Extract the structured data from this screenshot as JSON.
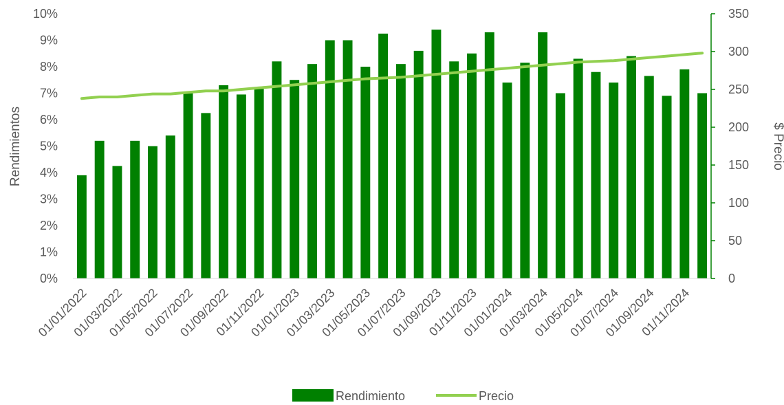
{
  "chart_data": {
    "type": "bar",
    "x": [
      "01/01/2022",
      "01/02/2022",
      "01/03/2022",
      "01/04/2022",
      "01/05/2022",
      "01/06/2022",
      "01/07/2022",
      "01/08/2022",
      "01/09/2022",
      "01/10/2022",
      "01/11/2022",
      "01/12/2022",
      "01/01/2023",
      "01/02/2023",
      "01/03/2023",
      "01/04/2023",
      "01/05/2023",
      "01/06/2023",
      "01/07/2023",
      "01/08/2023",
      "01/09/2023",
      "01/10/2023",
      "01/11/2023",
      "01/12/2023",
      "01/01/2024",
      "01/02/2024",
      "01/03/2024",
      "01/04/2024",
      "01/05/2024",
      "01/06/2024",
      "01/07/2024",
      "01/08/2024",
      "01/09/2024",
      "01/10/2024",
      "01/11/2024",
      "01/12/2024"
    ],
    "x_tick_labels": [
      "01/01/2022",
      "01/03/2022",
      "01/05/2022",
      "01/07/2022",
      "01/09/2022",
      "01/11/2022",
      "01/01/2023",
      "01/03/2023",
      "01/05/2023",
      "01/07/2023",
      "01/09/2023",
      "01/11/2023",
      "01/01/2024",
      "01/03/2024",
      "01/05/2024",
      "01/07/2024",
      "01/09/2024",
      "01/11/2024"
    ],
    "series": [
      {
        "name": "Rendimiento",
        "type": "bar",
        "axis": "left",
        "color": "#008000",
        "values": [
          0.039,
          0.052,
          0.0425,
          0.052,
          0.05,
          0.054,
          0.07,
          0.0625,
          0.073,
          0.0695,
          0.072,
          0.082,
          0.075,
          0.081,
          0.09,
          0.09,
          0.08,
          0.0925,
          0.081,
          0.086,
          0.094,
          0.082,
          0.085,
          0.093,
          0.074,
          0.0815,
          0.093,
          0.07,
          0.083,
          0.078,
          0.074,
          0.084,
          0.0765,
          0.069,
          0.079,
          0.07
        ]
      },
      {
        "name": "Precio",
        "type": "line",
        "axis": "right",
        "color": "#92D050",
        "values": [
          238,
          240,
          240,
          242,
          244,
          244,
          246,
          248,
          248,
          250,
          252,
          254,
          256,
          258,
          260,
          262,
          264,
          265,
          266,
          268,
          270,
          272,
          274,
          276,
          278,
          280,
          282,
          284,
          286,
          287,
          288,
          290,
          292,
          294,
          296,
          298
        ]
      }
    ],
    "ylabel": "Rendimientos",
    "y2label": "$ Precio",
    "ylim": [
      0,
      0.1
    ],
    "y2lim": [
      0,
      350
    ],
    "y_tick_labels": [
      "0%",
      "1%",
      "2%",
      "3%",
      "4%",
      "5%",
      "6%",
      "7%",
      "8%",
      "9%",
      "10%"
    ],
    "y2_tick_labels": [
      "0",
      "50",
      "100",
      "150",
      "200",
      "250",
      "300",
      "350"
    ],
    "grid": false,
    "legend_position": "bottom-center"
  }
}
